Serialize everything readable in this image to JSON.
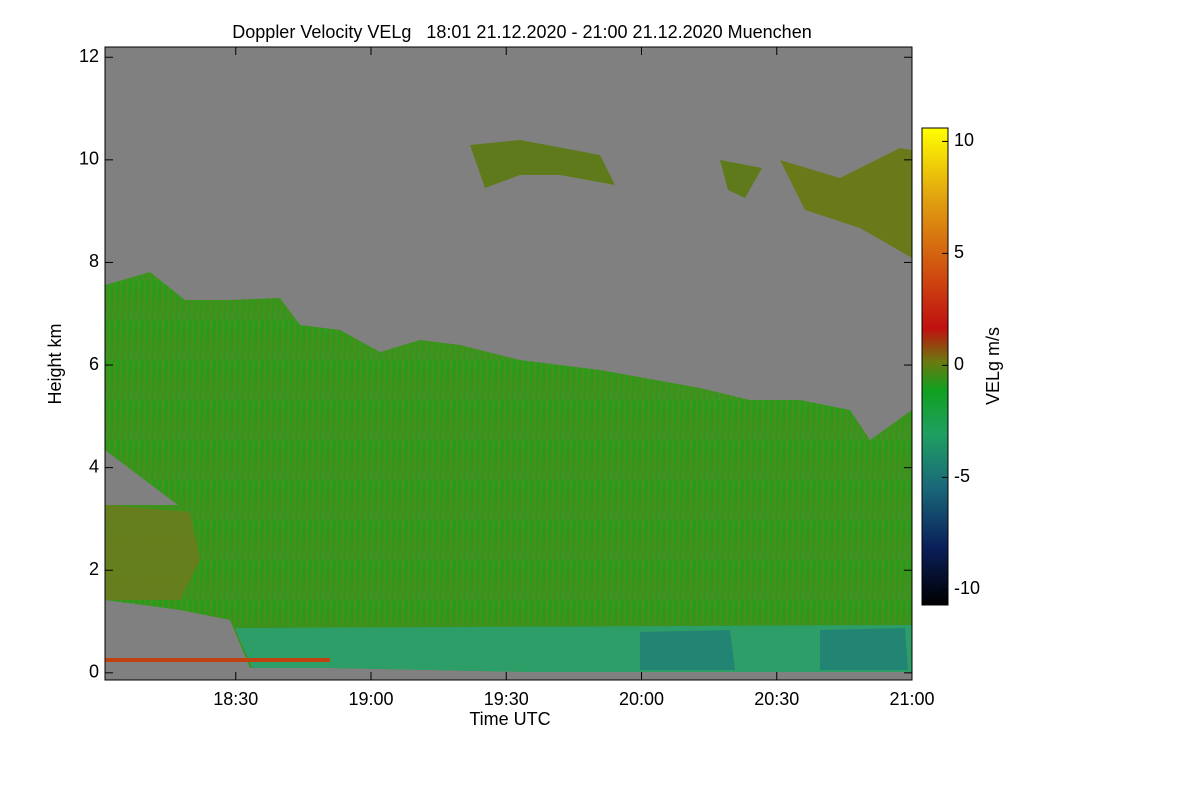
{
  "chart_data": {
    "type": "heatmap",
    "title": "Doppler Velocity VELg   18:01 21.12.2020 - 21:00 21.12.2020 Muenchen",
    "x_label": "Time UTC",
    "y_label": "Height km",
    "xlim": [
      1081,
      1260
    ],
    "xticks": [
      {
        "value": 1110,
        "label": "18:30"
      },
      {
        "value": 1140,
        "label": "19:00"
      },
      {
        "value": 1170,
        "label": "19:30"
      },
      {
        "value": 1200,
        "label": "20:00"
      },
      {
        "value": 1230,
        "label": "20:30"
      },
      {
        "value": 1260,
        "label": "21:00"
      }
    ],
    "ylim": [
      -0.14,
      12.2
    ],
    "yticks": [
      0,
      2,
      4,
      6,
      8,
      10,
      12
    ],
    "colorbar": {
      "label": "VELg m/s",
      "lim": [
        -10.7,
        10.6
      ],
      "ticks": [
        -10,
        -5,
        0,
        5,
        10
      ]
    }
  }
}
